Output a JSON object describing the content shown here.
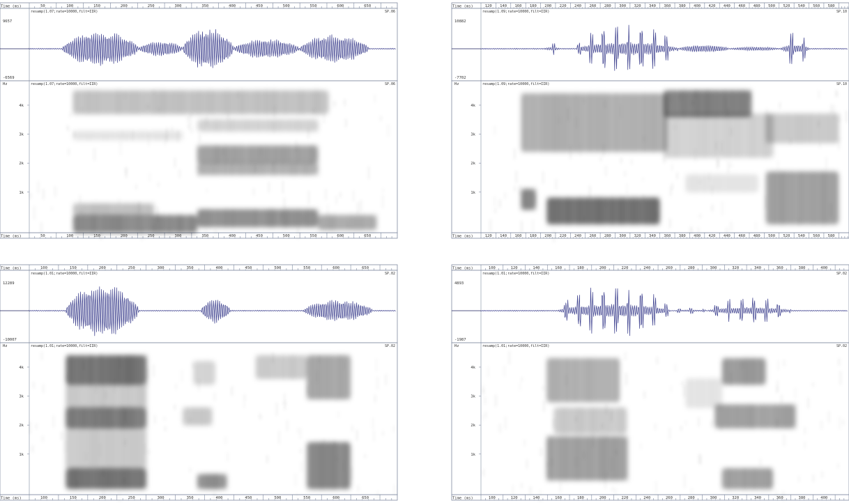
{
  "colors": {
    "waveform": "#3a3d8c",
    "waveform_dark": "#1c1f5e",
    "spectrogram_ink": "#000000",
    "frame": "#7f8aa0",
    "ruler_text": "#333333",
    "background": "#ffffff"
  },
  "chart_data": [
    {
      "type": "spectrogram",
      "time_axis_label": "Time (ms)",
      "time_ticks": [
        "50",
        "100",
        "150",
        "200",
        "250",
        "300",
        "350",
        "400",
        "450",
        "500",
        "550",
        "600",
        "650"
      ],
      "waveform": {
        "title": "resamp(1.07;rate=10000,filt=IIR)",
        "file": "SP.06",
        "ymax": "9657",
        "ymin": "-6569"
      },
      "spectrogram": {
        "unit_label": "Hz",
        "title": "resamp(1.07;rate=10000,filt=IIR)",
        "file": "SP.06",
        "freq_ticks": [
          "4k",
          "3k",
          "2k",
          "1k"
        ]
      }
    },
    {
      "type": "spectrogram",
      "time_axis_label": "Time (ms)",
      "time_ticks": [
        "120",
        "140",
        "160",
        "180",
        "200",
        "220",
        "240",
        "260",
        "280",
        "300",
        "320",
        "340",
        "360",
        "380",
        "400",
        "420",
        "440",
        "460",
        "480",
        "500",
        "520",
        "540",
        "560",
        "580"
      ],
      "waveform": {
        "title": "resamp(1.09;rate=10000,filt=IIR)",
        "file": "SP.10",
        "ymax": "10882",
        "ymin": "-7702"
      },
      "spectrogram": {
        "unit_label": "Hz",
        "title": "resamp(1.09;rate=10000,filt=IIR)",
        "file": "SP.10",
        "freq_ticks": [
          "4k",
          "3k",
          "2k",
          "1k"
        ]
      }
    },
    {
      "type": "spectrogram",
      "time_axis_label": "Time (ms)",
      "time_ticks": [
        "100",
        "150",
        "200",
        "250",
        "300",
        "350",
        "400",
        "450",
        "500",
        "550",
        "600",
        "650"
      ],
      "waveform": {
        "title": "resamp(1.01;rate=10000,filt=IIR)",
        "file": "SP.02",
        "ymax": "12289",
        "ymin": "-10007"
      },
      "spectrogram": {
        "unit_label": "Hz",
        "title": "resamp(1.01;rate=10000,filt=IIR)",
        "file": "SP.02",
        "freq_ticks": [
          "4k",
          "3k",
          "2k",
          "1k"
        ]
      }
    },
    {
      "type": "spectrogram",
      "time_axis_label": "Time (ms)",
      "time_ticks": [
        "100",
        "120",
        "140",
        "160",
        "180",
        "200",
        "220",
        "240",
        "260",
        "280",
        "300",
        "320",
        "340",
        "360",
        "380",
        "400"
      ],
      "waveform": {
        "title": "resamp(1.01;rate=10000,filt=IIR)",
        "file": "SP.02",
        "ymax": "4893",
        "ymin": "-1987"
      },
      "spectrogram": {
        "unit_label": "Hz",
        "title": "resamp(1.01;rate=10000,filt=IIR)",
        "file": "SP.02",
        "freq_ticks": [
          "4k",
          "3k",
          "2k",
          "1k"
        ]
      }
    }
  ]
}
